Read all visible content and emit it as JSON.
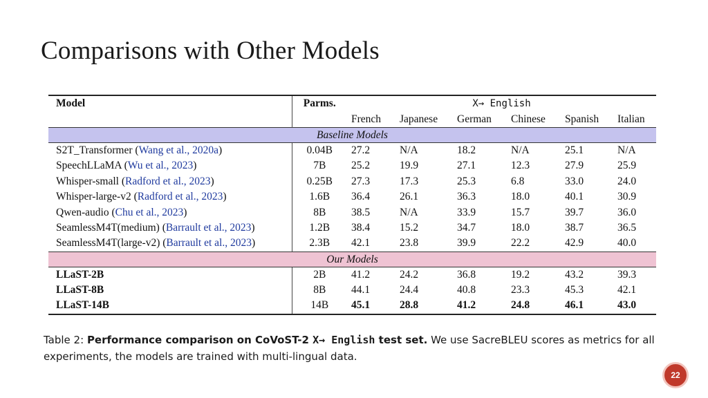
{
  "slide": {
    "title": "Comparisons with Other Models",
    "page_number": "22"
  },
  "table": {
    "header": {
      "model": "Model",
      "parms": "Parms.",
      "group": "X→ English",
      "languages": [
        "French",
        "Japanese",
        "German",
        "Chinese",
        "Spanish",
        "Italian"
      ]
    },
    "sections": [
      {
        "label": "Baseline Models",
        "rows": [
          {
            "model": "S2T_Transformer",
            "cite": "Wang et al., 2020a",
            "parms": "0.04B",
            "values": [
              "27.2",
              "N/A",
              "18.2",
              "N/A",
              "25.1",
              "N/A"
            ]
          },
          {
            "model": "SpeechLLaMA",
            "cite": "Wu et al., 2023",
            "parms": "7B",
            "values": [
              "25.2",
              "19.9",
              "27.1",
              "12.3",
              "27.9",
              "25.9"
            ]
          },
          {
            "model": "Whisper-small",
            "cite": "Radford et al., 2023",
            "parms": "0.25B",
            "values": [
              "27.3",
              "17.3",
              "25.3",
              "6.8",
              "33.0",
              "24.0"
            ]
          },
          {
            "model": "Whisper-large-v2",
            "cite": "Radford et al., 2023",
            "parms": "1.6B",
            "values": [
              "36.4",
              "26.1",
              "36.3",
              "18.0",
              "40.1",
              "30.9"
            ]
          },
          {
            "model": "Qwen-audio",
            "cite": "Chu et al., 2023",
            "parms": "8B",
            "values": [
              "38.5",
              "N/A",
              "33.9",
              "15.7",
              "39.7",
              "36.0"
            ]
          },
          {
            "model": "SeamlessM4T(medium)",
            "cite": "Barrault et al., 2023",
            "parms": "1.2B",
            "values": [
              "38.4",
              "15.2",
              "34.7",
              "18.0",
              "38.7",
              "36.5"
            ]
          },
          {
            "model": "SeamlessM4T(large-v2)",
            "cite": "Barrault et al., 2023",
            "parms": "2.3B",
            "values": [
              "42.1",
              "23.8",
              "39.9",
              "22.2",
              "42.9",
              "40.0"
            ]
          }
        ]
      },
      {
        "label": "Our Models",
        "rows": [
          {
            "model": "LLaST-2B",
            "parms": "2B",
            "values": [
              "41.2",
              "24.2",
              "36.8",
              "19.2",
              "43.2",
              "39.3"
            ]
          },
          {
            "model": "LLaST-8B",
            "parms": "8B",
            "values": [
              "44.1",
              "24.4",
              "40.8",
              "23.3",
              "45.3",
              "42.1"
            ]
          },
          {
            "model": "LLaST-14B",
            "parms": "14B",
            "values": [
              "45.1",
              "28.8",
              "41.2",
              "24.8",
              "46.1",
              "43.0"
            ]
          }
        ]
      }
    ]
  },
  "caption": {
    "prefix": "Table 2: ",
    "bold_text": "Performance comparison on CoVoST-2 ",
    "bold_mono": "X→ English",
    "bold_suffix": " test set.",
    "rest": " We use SacreBLEU scores as metrics for all experiments, the models are trained with multi-lingual data."
  }
}
